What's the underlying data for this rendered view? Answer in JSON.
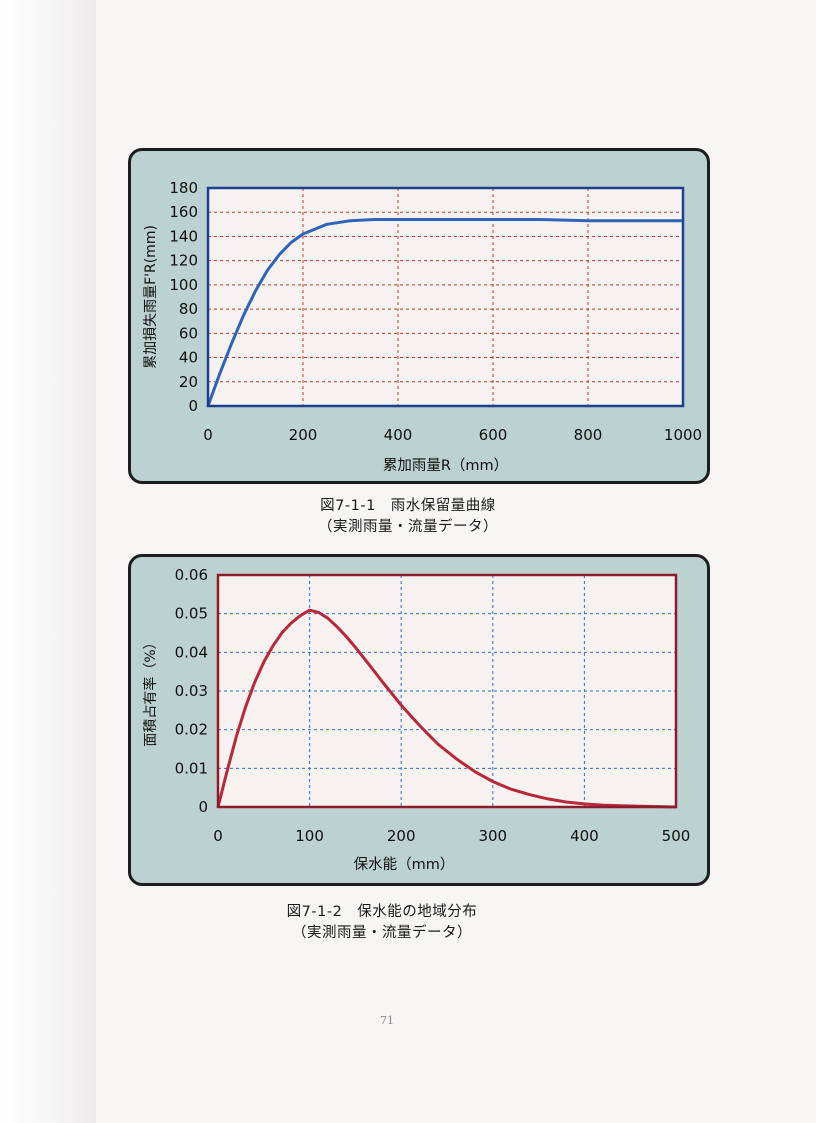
{
  "charts": [
    {
      "caption_line1": "図7-1-1　雨水保留量曲線",
      "caption_line2": "（実測雨量・流量データ）"
    },
    {
      "caption_line1": "図7-1-2　保水能の地域分布",
      "caption_line2": "（実測雨量・流量データ）"
    }
  ],
  "page_number": "71",
  "colors": {
    "panel_bg": "#bcd2d0",
    "plot_bg": "#f6f2f0",
    "chart1_frame": "#1c3f92",
    "chart1_curve": "#2e63b8",
    "chart1_grid": "#c0392b",
    "chart2_frame": "#8a1d2c",
    "chart2_curve": "#b8283a",
    "chart2_grid": "#2f6fd0"
  },
  "chart_data": [
    {
      "type": "line",
      "xlabel": "累加雨量R（mm）",
      "ylabel": "累加損失雨量F'R(mm)",
      "xlim": [
        0,
        1000
      ],
      "ylim": [
        0,
        180
      ],
      "xticks": [
        "0",
        "200",
        "400",
        "600",
        "800",
        "1000"
      ],
      "yticks": [
        "0",
        "20",
        "40",
        "60",
        "80",
        "100",
        "120",
        "140",
        "160",
        "180"
      ],
      "grid": true,
      "x": [
        0,
        25,
        50,
        75,
        100,
        125,
        150,
        175,
        200,
        250,
        300,
        350,
        400,
        500,
        600,
        700,
        800,
        900,
        1000
      ],
      "y": [
        0,
        27,
        52,
        75,
        95,
        112,
        125,
        135,
        142,
        150,
        153,
        154,
        154,
        154,
        154,
        154,
        153,
        153,
        153
      ]
    },
    {
      "type": "line",
      "xlabel": "保水能（mm）",
      "ylabel": "面積占有率（%）",
      "xlim": [
        0,
        500
      ],
      "ylim": [
        0,
        0.06
      ],
      "xticks": [
        "0",
        "100",
        "200",
        "300",
        "400",
        "500"
      ],
      "yticks": [
        "0",
        "0.01",
        "0.02",
        "0.03",
        "0.04",
        "0.05",
        "0.06"
      ],
      "grid": true,
      "x": [
        0,
        10,
        20,
        30,
        40,
        50,
        60,
        70,
        80,
        90,
        100,
        110,
        120,
        130,
        140,
        150,
        160,
        170,
        180,
        190,
        200,
        220,
        240,
        260,
        280,
        300,
        320,
        340,
        360,
        380,
        400,
        420,
        440,
        460,
        480,
        500
      ],
      "y": [
        0,
        0.0094,
        0.0182,
        0.0258,
        0.0322,
        0.0375,
        0.0417,
        0.0451,
        0.0476,
        0.0495,
        0.0509,
        0.0503,
        0.0488,
        0.0466,
        0.0441,
        0.0413,
        0.0383,
        0.0353,
        0.0322,
        0.0293,
        0.0263,
        0.0211,
        0.0163,
        0.0125,
        0.0092,
        0.0066,
        0.0046,
        0.0032,
        0.0021,
        0.0013,
        0.0008,
        0.0005,
        0.0003,
        0.0002,
        0.0001,
        0.0
      ]
    }
  ]
}
